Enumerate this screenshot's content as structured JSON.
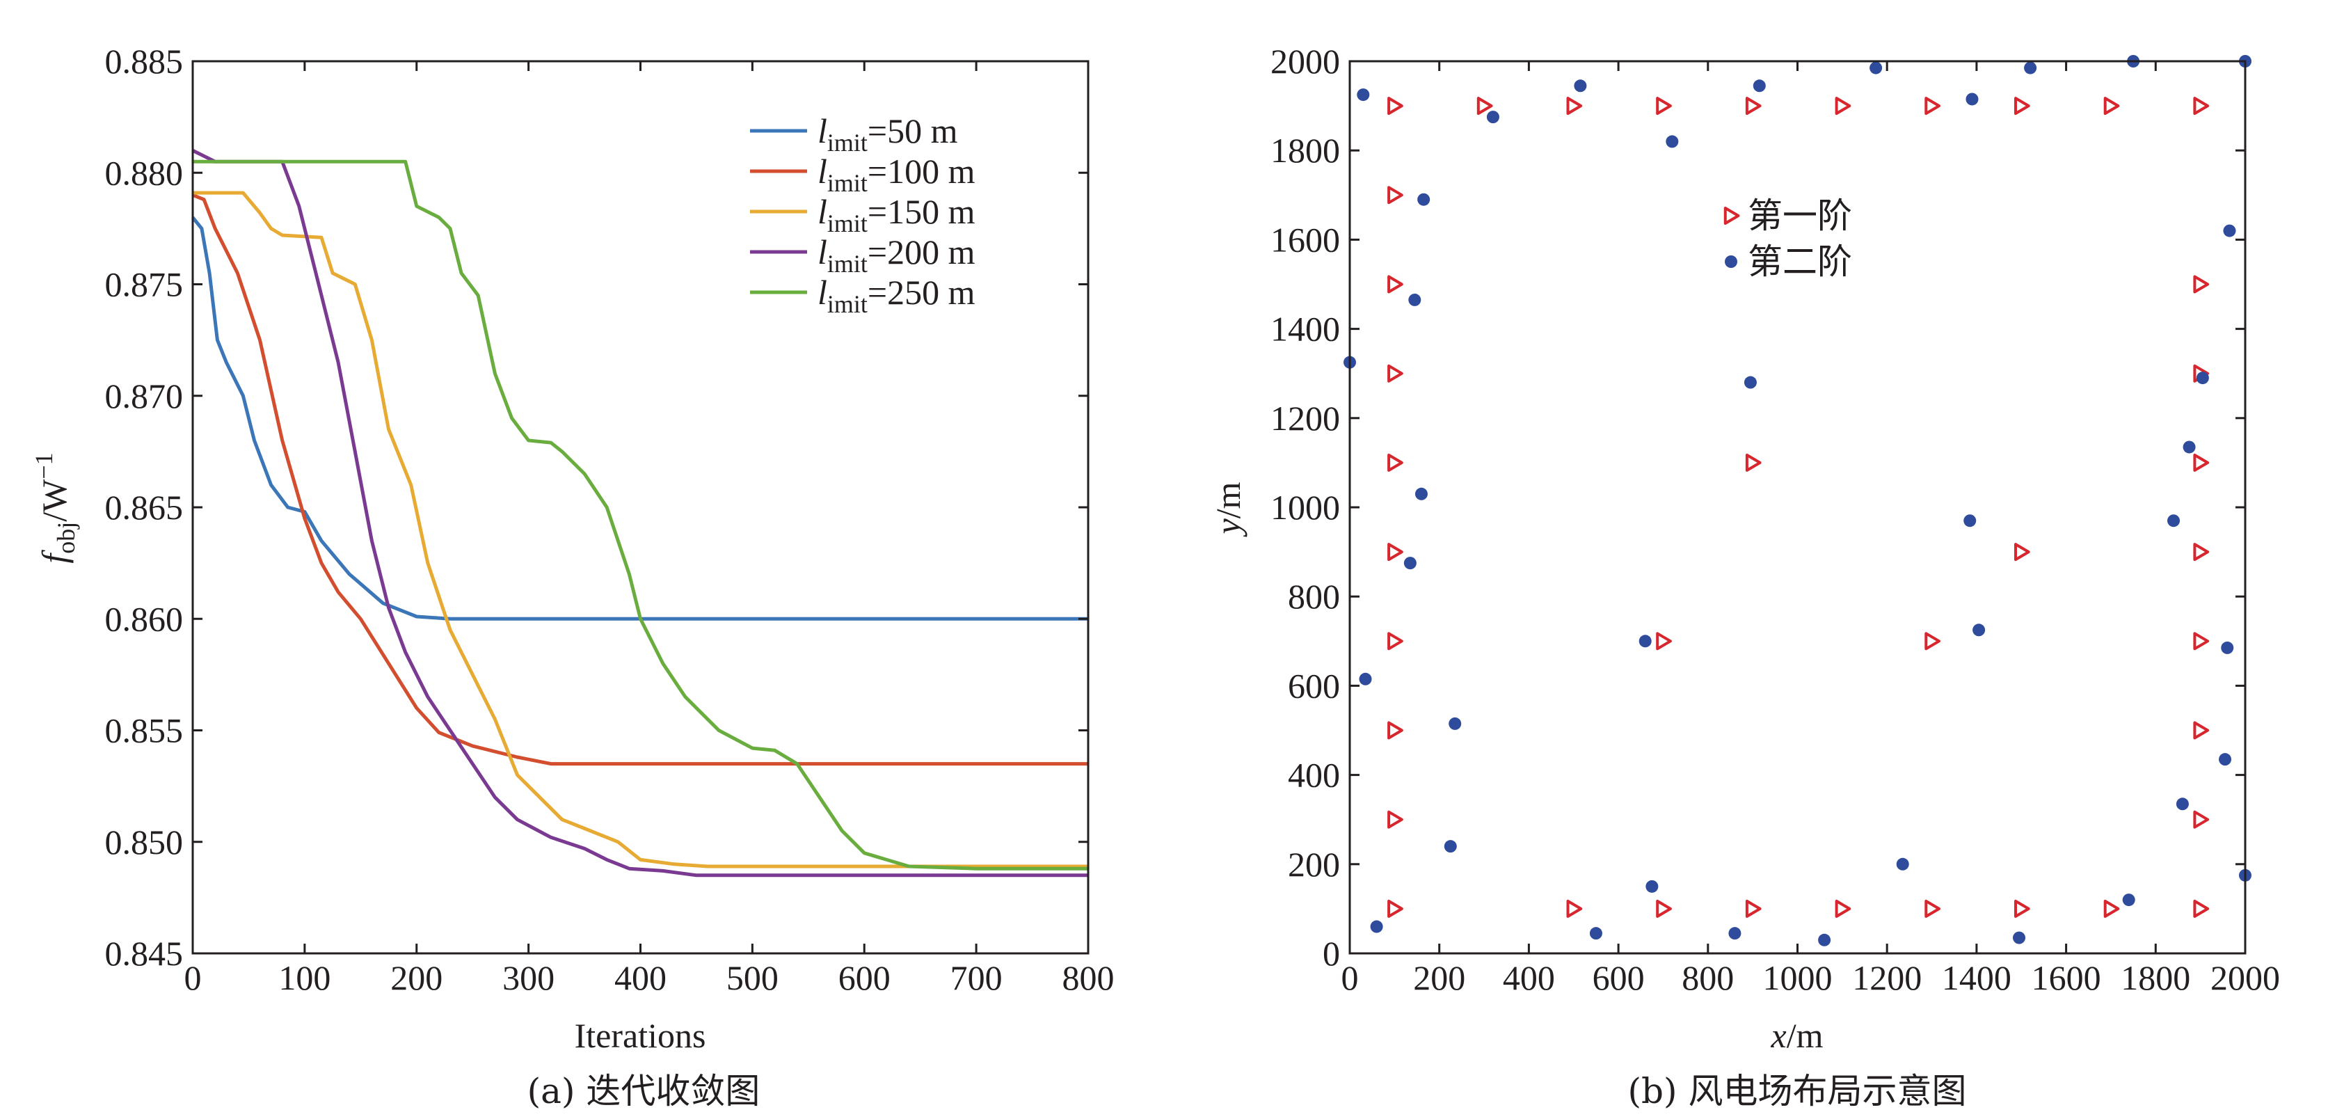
{
  "chart_data": [
    {
      "type": "line",
      "caption": "(a) 迭代收敛图",
      "xlabel": "Iterations",
      "ylabel": {
        "main": "f",
        "sub": "obj",
        "unit": "/W",
        "sup": "−1"
      },
      "xlim": [
        0,
        800
      ],
      "ylim": [
        0.845,
        0.885
      ],
      "xticks": [
        0,
        100,
        200,
        300,
        400,
        500,
        600,
        700,
        800
      ],
      "yticks": [
        "0.845",
        "0.850",
        "0.855",
        "0.860",
        "0.865",
        "0.870",
        "0.875",
        "0.880",
        "0.885"
      ],
      "legend_position": "top-right",
      "series": [
        {
          "legend": {
            "pre": "l",
            "sub": "imit",
            "post": "=50 m"
          },
          "color": "#3b76b8",
          "points": [
            [
              0,
              0.878
            ],
            [
              8,
              0.8775
            ],
            [
              15,
              0.8755
            ],
            [
              22,
              0.8725
            ],
            [
              30,
              0.8715
            ],
            [
              45,
              0.87
            ],
            [
              55,
              0.868
            ],
            [
              70,
              0.866
            ],
            [
              85,
              0.865
            ],
            [
              100,
              0.8648
            ],
            [
              115,
              0.8635
            ],
            [
              140,
              0.862
            ],
            [
              170,
              0.8607
            ],
            [
              200,
              0.8601
            ],
            [
              230,
              0.86
            ],
            [
              800,
              0.86
            ]
          ]
        },
        {
          "legend": {
            "pre": "l",
            "sub": "imit",
            "post": "=100 m"
          },
          "color": "#d24e2f",
          "points": [
            [
              0,
              0.879
            ],
            [
              10,
              0.8788
            ],
            [
              20,
              0.8775
            ],
            [
              40,
              0.8755
            ],
            [
              60,
              0.8725
            ],
            [
              80,
              0.868
            ],
            [
              100,
              0.8645
            ],
            [
              115,
              0.8625
            ],
            [
              130,
              0.8612
            ],
            [
              150,
              0.86
            ],
            [
              175,
              0.858
            ],
            [
              200,
              0.856
            ],
            [
              220,
              0.8549
            ],
            [
              250,
              0.8543
            ],
            [
              290,
              0.8538
            ],
            [
              320,
              0.8535
            ],
            [
              800,
              0.8535
            ]
          ]
        },
        {
          "legend": {
            "pre": "l",
            "sub": "imit",
            "post": "=150 m"
          },
          "color": "#e7aa33",
          "points": [
            [
              0,
              0.8791
            ],
            [
              45,
              0.8791
            ],
            [
              60,
              0.8782
            ],
            [
              70,
              0.8775
            ],
            [
              80,
              0.8772
            ],
            [
              115,
              0.8771
            ],
            [
              125,
              0.8755
            ],
            [
              145,
              0.875
            ],
            [
              160,
              0.8725
            ],
            [
              175,
              0.8685
            ],
            [
              195,
              0.866
            ],
            [
              210,
              0.8625
            ],
            [
              230,
              0.8595
            ],
            [
              250,
              0.8575
            ],
            [
              270,
              0.8555
            ],
            [
              290,
              0.853
            ],
            [
              310,
              0.852
            ],
            [
              330,
              0.851
            ],
            [
              350,
              0.8506
            ],
            [
              380,
              0.85
            ],
            [
              400,
              0.8492
            ],
            [
              430,
              0.849
            ],
            [
              460,
              0.8489
            ],
            [
              800,
              0.8489
            ]
          ]
        },
        {
          "legend": {
            "pre": "l",
            "sub": "imit",
            "post": "=200 m"
          },
          "color": "#7b3a92",
          "points": [
            [
              0,
              0.881
            ],
            [
              20,
              0.8805
            ],
            [
              80,
              0.8805
            ],
            [
              95,
              0.8785
            ],
            [
              110,
              0.8755
            ],
            [
              130,
              0.8715
            ],
            [
              145,
              0.8675
            ],
            [
              160,
              0.8635
            ],
            [
              175,
              0.8605
            ],
            [
              190,
              0.8585
            ],
            [
              210,
              0.8565
            ],
            [
              230,
              0.855
            ],
            [
              250,
              0.8535
            ],
            [
              270,
              0.852
            ],
            [
              290,
              0.851
            ],
            [
              320,
              0.8502
            ],
            [
              350,
              0.8497
            ],
            [
              370,
              0.8492
            ],
            [
              390,
              0.8488
            ],
            [
              420,
              0.8487
            ],
            [
              450,
              0.8485
            ],
            [
              800,
              0.8485
            ]
          ]
        },
        {
          "legend": {
            "pre": "l",
            "sub": "imit",
            "post": "=250 m"
          },
          "color": "#6aad3f",
          "points": [
            [
              0,
              0.8805
            ],
            [
              190,
              0.8805
            ],
            [
              200,
              0.8785
            ],
            [
              220,
              0.878
            ],
            [
              230,
              0.8775
            ],
            [
              240,
              0.8755
            ],
            [
              255,
              0.8745
            ],
            [
              270,
              0.871
            ],
            [
              285,
              0.869
            ],
            [
              300,
              0.868
            ],
            [
              320,
              0.8679
            ],
            [
              330,
              0.8675
            ],
            [
              340,
              0.867
            ],
            [
              350,
              0.8665
            ],
            [
              370,
              0.865
            ],
            [
              380,
              0.8635
            ],
            [
              390,
              0.862
            ],
            [
              400,
              0.86
            ],
            [
              420,
              0.858
            ],
            [
              440,
              0.8565
            ],
            [
              470,
              0.855
            ],
            [
              500,
              0.8542
            ],
            [
              520,
              0.8541
            ],
            [
              540,
              0.8535
            ],
            [
              560,
              0.852
            ],
            [
              580,
              0.8505
            ],
            [
              600,
              0.8495
            ],
            [
              620,
              0.8492
            ],
            [
              640,
              0.8489
            ],
            [
              700,
              0.8488
            ],
            [
              800,
              0.8488
            ]
          ]
        }
      ]
    },
    {
      "type": "scatter",
      "caption": "(b) 风电场布局示意图",
      "xlabel": {
        "main": "x",
        "unit": "/m"
      },
      "ylabel": {
        "main": "y",
        "unit": "/m"
      },
      "xlim": [
        0,
        2000
      ],
      "ylim": [
        0,
        2000
      ],
      "xticks": [
        0,
        200,
        400,
        600,
        800,
        1000,
        1200,
        1400,
        1600,
        1800,
        2000
      ],
      "yticks": [
        0,
        200,
        400,
        600,
        800,
        1000,
        1200,
        1400,
        1600,
        1800,
        2000
      ],
      "legend_position": "upper-middle",
      "series": [
        {
          "name": "第一阶",
          "marker": "triangle-right",
          "color": "#d7262d",
          "points": [
            [
              100,
              1900
            ],
            [
              300,
              1900
            ],
            [
              500,
              1900
            ],
            [
              700,
              1900
            ],
            [
              900,
              1900
            ],
            [
              1100,
              1900
            ],
            [
              1300,
              1900
            ],
            [
              1500,
              1900
            ],
            [
              1700,
              1900
            ],
            [
              1900,
              1900
            ],
            [
              100,
              1700
            ],
            [
              100,
              1500
            ],
            [
              100,
              1300
            ],
            [
              100,
              1100
            ],
            [
              100,
              900
            ],
            [
              100,
              700
            ],
            [
              100,
              500
            ],
            [
              100,
              300
            ],
            [
              100,
              100
            ],
            [
              1900,
              1500
            ],
            [
              1900,
              1300
            ],
            [
              1900,
              1100
            ],
            [
              1900,
              900
            ],
            [
              1900,
              700
            ],
            [
              1900,
              500
            ],
            [
              1900,
              300
            ],
            [
              1900,
              100
            ],
            [
              500,
              100
            ],
            [
              700,
              100
            ],
            [
              900,
              100
            ],
            [
              1100,
              100
            ],
            [
              1300,
              100
            ],
            [
              1500,
              100
            ],
            [
              1700,
              100
            ],
            [
              900,
              1100
            ],
            [
              1500,
              900
            ],
            [
              700,
              700
            ],
            [
              1300,
              700
            ]
          ]
        },
        {
          "name": "第二阶",
          "marker": "circle",
          "color": "#2e4b9c",
          "points": [
            [
              30,
              1925
            ],
            [
              515,
              1945
            ],
            [
              915,
              1945
            ],
            [
              1175,
              1985
            ],
            [
              1520,
              1985
            ],
            [
              1750,
              2000
            ],
            [
              2000,
              2000
            ],
            [
              320,
              1875
            ],
            [
              720,
              1820
            ],
            [
              1390,
              1915
            ],
            [
              165,
              1690
            ],
            [
              1965,
              1620
            ],
            [
              145,
              1465
            ],
            [
              0,
              1325
            ],
            [
              895,
              1280
            ],
            [
              1905,
              1290
            ],
            [
              1875,
              1135
            ],
            [
              160,
              1030
            ],
            [
              1385,
              970
            ],
            [
              1840,
              970
            ],
            [
              135,
              875
            ],
            [
              660,
              700
            ],
            [
              1405,
              725
            ],
            [
              1960,
              685
            ],
            [
              35,
              615
            ],
            [
              235,
              515
            ],
            [
              1955,
              435
            ],
            [
              1860,
              335
            ],
            [
              225,
              240
            ],
            [
              1235,
              200
            ],
            [
              2000,
              175
            ],
            [
              675,
              150
            ],
            [
              1740,
              120
            ],
            [
              60,
              60
            ],
            [
              550,
              45
            ],
            [
              860,
              45
            ],
            [
              1060,
              30
            ],
            [
              1495,
              35
            ]
          ]
        }
      ]
    }
  ]
}
